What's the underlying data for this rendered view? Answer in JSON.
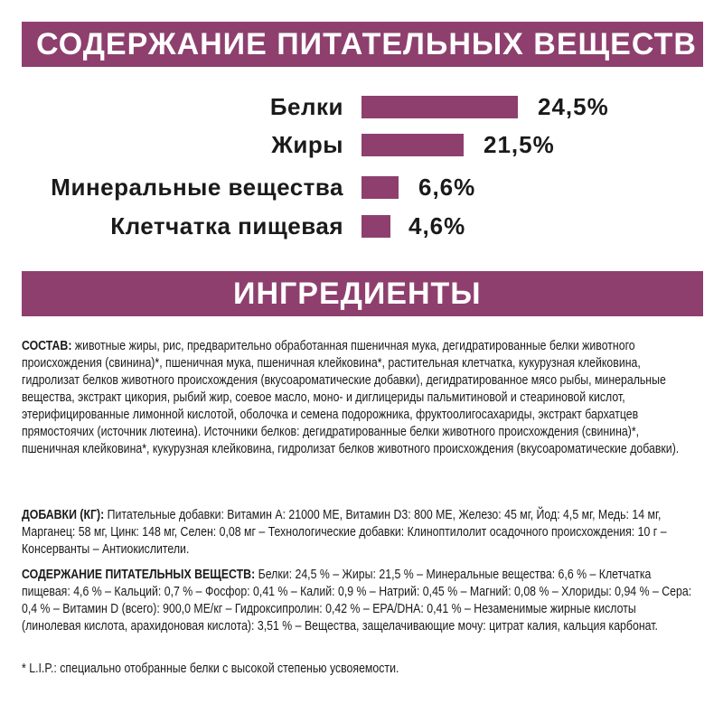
{
  "nutrients_header": "СОДЕРЖАНИЕ ПИТАТЕЛЬНЫХ ВЕЩЕСТВ",
  "chart_data": {
    "type": "bar",
    "categories": [
      "Белки",
      "Жиры",
      "Минеральные вещества",
      "Клетчатка пищевая"
    ],
    "values": [
      24.5,
      21.5,
      6.6,
      4.6
    ],
    "data_labels": [
      "24,5%",
      "21,5%",
      "6,6%",
      "4,6%"
    ],
    "orientation": "horizontal",
    "color": "#8e3f6e"
  },
  "ingredients_header": "ИНГРЕДИЕНТЫ",
  "composition": {
    "label": "СОСТАВ:",
    "text": " животные жиры, рис, предварительно обработанная пшеничная мука, дегидратированные белки животного происхождения (свинина)*, пшеничная мука, пшеничная клейковина*, растительная клетчатка, кукурузная клейковина, гидролизат белков животного происхождения (вкусоароматические добавки), дегидратированное мясо рыбы, минеральные вещества, экстракт цикория, рыбий жир, соевое масло, моно- и диглицериды пальмитиновой и стеариновой кислот, этерифицированные лимонной кислотой, оболочка и семена подорожника, фруктоолигосахариды, экстракт бархатцев прямостоячих (источник лютеина). Источники белков: дегидратированные белки животного происхождения (свинина)*, пшеничная клейковина*, кукурузная клейковина, гидролизат белков животного происхождения (вкусоароматические добавки)."
  },
  "additives": {
    "label": "ДОБАВКИ (КГ):",
    "text": " Питательные добавки: Витамин А: 21000 МЕ, Витамин D3: 800 МЕ, Железо: 45 мг, Йод: 4,5 мг, Медь: 14 мг, Марганец: 58 мг, Цинк: 148 мг, Селен: 0,08 мг – Технологические добавки: Клиноптилолит осадочного происхождения: 10 г – Консерванты – Антиокислители."
  },
  "nutrients_text": {
    "label": "СОДЕРЖАНИЕ ПИТАТЕЛЬНЫХ ВЕЩЕСТВ:",
    "text": " Белки: 24,5 % – Жиры: 21,5 % – Минеральные вещества: 6,6 % – Клетчатка пищевая: 4,6 % – Кальций: 0,7 % – Фосфор: 0,41 % – Калий: 0,9 % – Натрий: 0,45 % – Магний: 0,08 % – Хлориды: 0,94 % – Сера: 0,4 % – Витамин D (всего): 900,0 МЕ/кг – Гидроксипролин: 0,42 % – EPA/DHA: 0,41 % – Незаменимые жирные кислоты (линолевая кислота, арахидоновая кислота): 3,51 % – Вещества, защелачивающие мочу: цитрат калия, кальция карбонат."
  },
  "footnote": "* L.I.P.: специально отобранные белки с высокой степенью усвояемости."
}
